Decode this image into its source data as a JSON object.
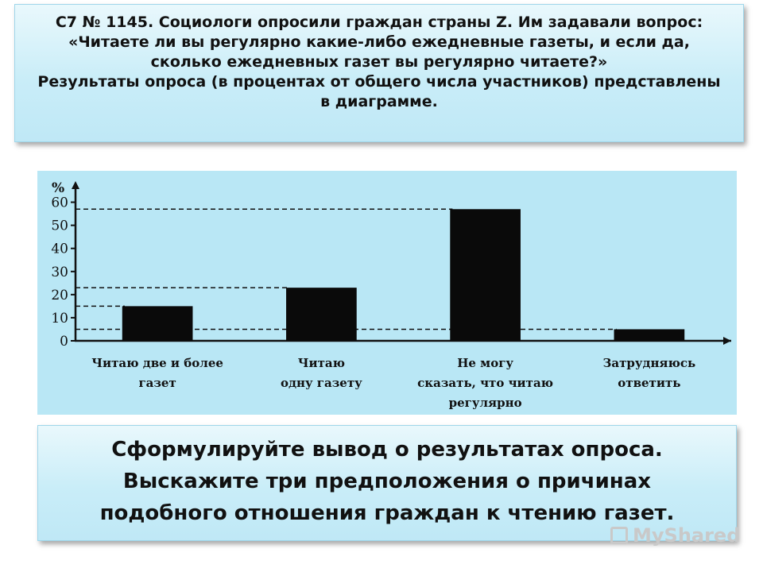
{
  "question": {
    "line1": "С7 № 1145. Социологи опросили граждан страны Z. Им задавали вопрос:",
    "line2": "«Читаете ли вы регулярно какие-либо ежедневные газеты, и если да,",
    "line3": "сколько ежедневных газет вы регулярно читаете?»",
    "line4": "Результаты опроса (в процентах от общего числа участников) представлены",
    "line5": "в диаграмме."
  },
  "task": {
    "line1": "Сформулируйте вывод о результатах опроса.",
    "line2": "Выскажите три предположения о причинах",
    "line3": "подобного отношения граждан к чтению газет."
  },
  "watermark": {
    "text": "MyShared",
    "icon": "presentation-icon"
  },
  "chart_data": {
    "type": "bar",
    "y_unit": "%",
    "categories": [
      [
        "Читаю две и более",
        "газет"
      ],
      [
        "Читаю",
        "одну газету"
      ],
      [
        "Не могу",
        "сказать, что читаю",
        "регулярно"
      ],
      [
        "Затрудняюсь",
        "ответить"
      ]
    ],
    "values": [
      15,
      23,
      57,
      5
    ],
    "ylim": [
      0,
      65
    ],
    "yticks": [
      0,
      10,
      20,
      30,
      40,
      50,
      60
    ],
    "reference_lines": [
      5,
      15,
      23,
      57
    ],
    "colors": {
      "bar": "#0a0a0a",
      "axis": "#111111",
      "background": "#b9e7f5",
      "box": "#c9edf8"
    },
    "grid": false,
    "legend": "none"
  }
}
